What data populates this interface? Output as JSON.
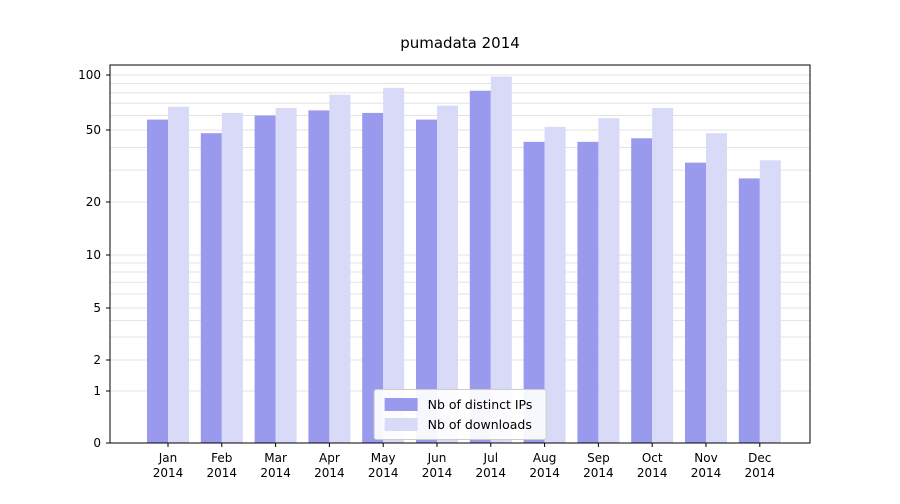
{
  "figure": {
    "title": "pumadata 2014"
  },
  "chart_data": {
    "type": "bar",
    "title": "pumadata 2014",
    "categories": [
      "Jan",
      "Feb",
      "Mar",
      "Apr",
      "May",
      "Jun",
      "Jul",
      "Aug",
      "Sep",
      "Oct",
      "Nov",
      "Dec"
    ],
    "category_year": "2014",
    "series": [
      {
        "name": "Nb of distinct IPs",
        "color": "#9999ee",
        "values": [
          57,
          48,
          60,
          64,
          62,
          57,
          82,
          43,
          43,
          45,
          33,
          27
        ]
      },
      {
        "name": "Nb of downloads",
        "color": "#d9d9f8",
        "values": [
          67,
          62,
          66,
          78,
          85,
          68,
          98,
          52,
          58,
          66,
          48,
          34
        ]
      }
    ],
    "yscale": "symlog",
    "y_ticks": [
      0,
      1,
      2,
      5,
      10,
      20,
      50,
      100
    ],
    "ylim": [
      0,
      110
    ],
    "grid": true,
    "grid_color": "#e3e3e3",
    "axis_color": "#000000",
    "legend_position": "lower center"
  }
}
